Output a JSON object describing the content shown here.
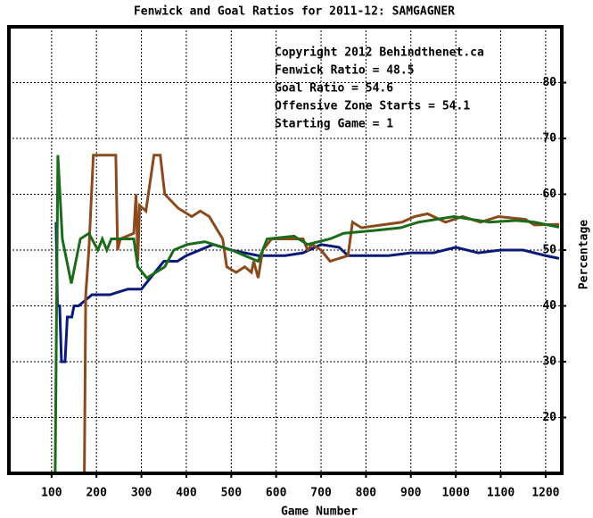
{
  "chart_data": {
    "type": "line",
    "title": "Fenwick and Goal Ratios for 2011-12: SAMGAGNER",
    "x_label": "Game Number",
    "y_label": "Percentage",
    "xlim": [
      5,
      1236
    ],
    "ylim": [
      10,
      90
    ],
    "xticks": [
      100,
      200,
      300,
      400,
      500,
      600,
      700,
      800,
      900,
      1000,
      1100,
      1200
    ],
    "yticks": [
      20,
      30,
      40,
      50,
      60,
      70,
      80
    ],
    "grid": true,
    "annotations": [
      {
        "text": "Copyright 2012 Behindthenet.ca",
        "color": "#000000"
      },
      {
        "text": "Fenwick Ratio = 48.5",
        "color": "#0a1a7a"
      },
      {
        "text": "Goal Ratio = 54.6",
        "color": "#8b4a1c"
      },
      {
        "text": "Offensive Zone Starts = 54.1",
        "color": "#1a6b1a"
      },
      {
        "text": "Starting Game = 1",
        "color": "#000000"
      }
    ],
    "series": [
      {
        "name": "Fenwick Ratio",
        "color": "#0a1a7a",
        "x": [
          110,
          113,
          118,
          122,
          130,
          135,
          145,
          150,
          160,
          175,
          190,
          200,
          230,
          270,
          300,
          320,
          340,
          350,
          380,
          400,
          430,
          460,
          500,
          560,
          620,
          660,
          700,
          740,
          760,
          800,
          850,
          900,
          950,
          1000,
          1050,
          1100,
          1150,
          1200,
          1230
        ],
        "values": [
          55,
          40,
          40,
          30,
          30,
          38,
          38,
          40,
          40,
          41,
          42,
          42,
          42,
          43,
          43,
          45,
          47,
          48,
          48,
          49,
          50,
          51,
          50,
          49,
          49,
          49.5,
          51,
          50.5,
          49,
          49,
          49,
          49.5,
          49.5,
          50.5,
          49.5,
          50,
          50,
          49,
          48.5
        ]
      },
      {
        "name": "Goal Ratio",
        "color": "#8b4a1c",
        "x": [
          173,
          176,
          183,
          193,
          243,
          247,
          253,
          283,
          288,
          292,
          296,
          310,
          328,
          342,
          352,
          382,
          412,
          431,
          451,
          481,
          490,
          511,
          530,
          545,
          550,
          560,
          570,
          590,
          660,
          670,
          680,
          700,
          720,
          760,
          770,
          790,
          880,
          908,
          937,
          977,
          1015,
          1055,
          1095,
          1155,
          1175,
          1230
        ],
        "values": [
          10,
          42,
          50,
          67,
          67,
          50,
          52,
          53,
          60,
          48,
          58,
          57,
          67,
          67,
          60,
          57.5,
          56,
          57,
          56,
          52,
          47,
          46,
          47,
          46,
          48,
          45,
          50,
          52,
          52,
          50,
          51,
          50,
          48,
          49,
          55,
          54,
          55,
          56,
          56.5,
          55,
          56,
          55,
          56,
          55.5,
          54.5,
          54.6
        ]
      },
      {
        "name": "Offensive Zone Starts",
        "color": "#1a6b1a",
        "x": [
          108,
          114,
          124,
          144,
          164,
          183,
          203,
          213,
          223,
          233,
          283,
          292,
          312,
          352,
          372,
          402,
          441,
          501,
          530,
          560,
          580,
          640,
          670,
          720,
          750,
          818,
          877,
          917,
          996,
          1075,
          1135,
          1175,
          1230
        ],
        "values": [
          10,
          67,
          52,
          44,
          52,
          53,
          50,
          52,
          50,
          52,
          52,
          47,
          45,
          47,
          50,
          51,
          51.5,
          50,
          49,
          48,
          52,
          52.5,
          51,
          52,
          53,
          53.5,
          54,
          55,
          56,
          55,
          55.3,
          55,
          54.1
        ]
      }
    ]
  }
}
